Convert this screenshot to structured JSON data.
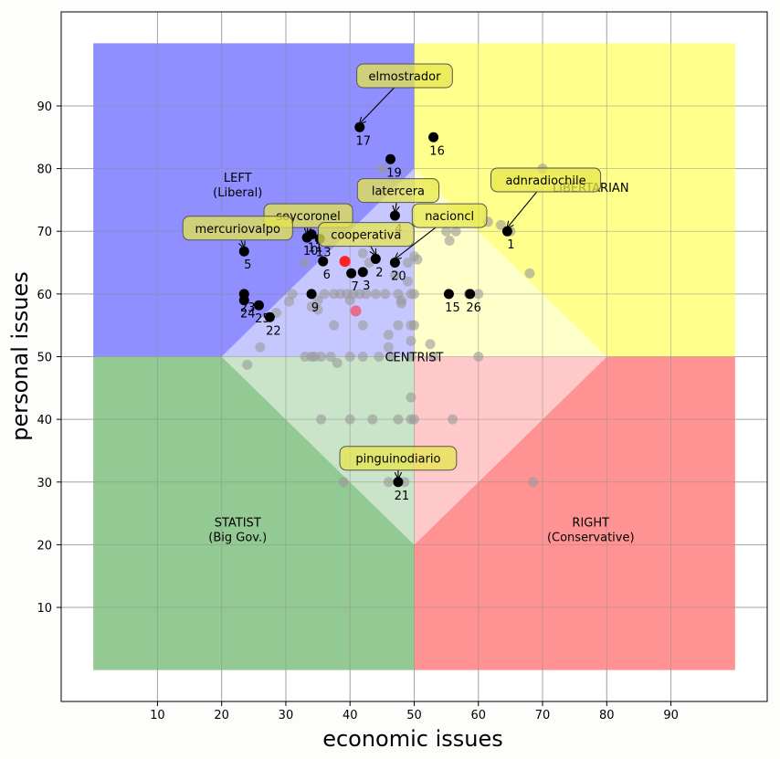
{
  "chart_data": {
    "type": "scatter",
    "xlabel": "economic issues",
    "ylabel": "personal issues",
    "xlim": [
      -5,
      105
    ],
    "ylim": [
      -5,
      105
    ],
    "xticks": [
      10,
      20,
      30,
      40,
      50,
      60,
      70,
      80,
      90
    ],
    "yticks": [
      10,
      20,
      30,
      40,
      50,
      60,
      70,
      80,
      90
    ],
    "grid": true,
    "colors": {
      "left": "#7b7bff",
      "libertarian": "#ffff77",
      "statist": "#80bf80",
      "right": "#ff8080",
      "center_left": "#bdbdff",
      "center_libertarian": "#ffffc0",
      "center_statist": "#c0dfc0",
      "center_right": "#ffc0c0",
      "background_point": "#999999",
      "labeled_point": "#000000",
      "red_point": "#ff2020",
      "pink_point": "#ee5577",
      "annotation_box": "#e6e64d"
    },
    "regions": [
      {
        "name": "left",
        "label_lines": [
          "LEFT",
          "(Liberal)"
        ],
        "x": 22.5,
        "y": 77.5
      },
      {
        "name": "libertarian",
        "label_lines": [
          "LIBERTARIAN"
        ],
        "x": 77.5,
        "y": 77.0
      },
      {
        "name": "statist",
        "label_lines": [
          "STATIST",
          "(Big Gov.)"
        ],
        "x": 22.5,
        "y": 22.5
      },
      {
        "name": "right",
        "label_lines": [
          "RIGHT",
          "(Conservative)"
        ],
        "x": 77.5,
        "y": 22.5
      },
      {
        "name": "centrist",
        "label_lines": [
          "CENTRIST"
        ],
        "x": 50,
        "y": 50
      }
    ],
    "background_points": [
      [
        24,
        48.7
      ],
      [
        26,
        51.5
      ],
      [
        28.5,
        57
      ],
      [
        30.5,
        58.8
      ],
      [
        31,
        60
      ],
      [
        33,
        65
      ],
      [
        33,
        50
      ],
      [
        34,
        50
      ],
      [
        34,
        58
      ],
      [
        34.5,
        50
      ],
      [
        35,
        57.5
      ],
      [
        35,
        59
      ],
      [
        35.5,
        40
      ],
      [
        35.5,
        50
      ],
      [
        36,
        60
      ],
      [
        37,
        50
      ],
      [
        37.5,
        55
      ],
      [
        37.5,
        60
      ],
      [
        38,
        49
      ],
      [
        38.5,
        60
      ],
      [
        39,
        30
      ],
      [
        39.5,
        60
      ],
      [
        40,
        50
      ],
      [
        40,
        59
      ],
      [
        40,
        40
      ],
      [
        40.5,
        60
      ],
      [
        41.5,
        60
      ],
      [
        42,
        55
      ],
      [
        42,
        50
      ],
      [
        42,
        66.5
      ],
      [
        42.5,
        60
      ],
      [
        43,
        65
      ],
      [
        43.5,
        40
      ],
      [
        44,
        60
      ],
      [
        44.5,
        50
      ],
      [
        45,
        80
      ],
      [
        45.5,
        60
      ],
      [
        46,
        53.5
      ],
      [
        46,
        51.5
      ],
      [
        46,
        30
      ],
      [
        46.5,
        50
      ],
      [
        47,
        63
      ],
      [
        47.5,
        60
      ],
      [
        47.5,
        55
      ],
      [
        47.5,
        40
      ],
      [
        47.5,
        30
      ],
      [
        48,
        59
      ],
      [
        48,
        58.5
      ],
      [
        48.5,
        30
      ],
      [
        49,
        65
      ],
      [
        49,
        62
      ],
      [
        49.5,
        60
      ],
      [
        49.5,
        55
      ],
      [
        49.5,
        52.5
      ],
      [
        49.5,
        50
      ],
      [
        49.5,
        43.5
      ],
      [
        49.5,
        40
      ],
      [
        50,
        66
      ],
      [
        50,
        60
      ],
      [
        50,
        55
      ],
      [
        50,
        40
      ],
      [
        50.5,
        65.5
      ],
      [
        52.5,
        52
      ],
      [
        53,
        50
      ],
      [
        55,
        70
      ],
      [
        55.5,
        68.5
      ],
      [
        56,
        40
      ],
      [
        56.5,
        70
      ],
      [
        58.5,
        60
      ],
      [
        60,
        60
      ],
      [
        60,
        50
      ],
      [
        61.5,
        71.5
      ],
      [
        63.5,
        71
      ],
      [
        65,
        70
      ],
      [
        68,
        63.3
      ],
      [
        68.5,
        30
      ],
      [
        70,
        80
      ]
    ],
    "red_points": [
      {
        "x": 39.2,
        "y": 65.2,
        "color": "red"
      },
      {
        "x": 40.9,
        "y": 57.3,
        "color": "pink"
      }
    ],
    "labeled_points": [
      {
        "id": "1",
        "x": 64.5,
        "y": 70
      },
      {
        "id": "2",
        "x": 44,
        "y": 65.6
      },
      {
        "id": "3",
        "x": 42,
        "y": 63.5
      },
      {
        "id": "4",
        "x": 47,
        "y": 72.5
      },
      {
        "id": "5",
        "x": 23.5,
        "y": 66.8
      },
      {
        "id": "6",
        "x": 35.8,
        "y": 65.2
      },
      {
        "id": "7",
        "x": 40.2,
        "y": 63.3
      },
      {
        "id": "9",
        "x": 34,
        "y": 60
      },
      {
        "id": "10",
        "x": 33.3,
        "y": 69
      },
      {
        "id": "11",
        "x": 34,
        "y": 69.5
      },
      {
        "id": "13",
        "x": 35.3,
        "y": 68.8
      },
      {
        "id": "15",
        "x": 55.4,
        "y": 60
      },
      {
        "id": "16",
        "x": 53,
        "y": 85
      },
      {
        "id": "17",
        "x": 41.5,
        "y": 86.6
      },
      {
        "id": "19",
        "x": 46.3,
        "y": 81.5
      },
      {
        "id": "20",
        "x": 47,
        "y": 65
      },
      {
        "id": "21",
        "x": 47.5,
        "y": 30
      },
      {
        "id": "22",
        "x": 27.5,
        "y": 56.3
      },
      {
        "id": "23",
        "x": 23.5,
        "y": 60
      },
      {
        "id": "24",
        "x": 23.5,
        "y": 59
      },
      {
        "id": "25",
        "x": 25.8,
        "y": 58.2
      },
      {
        "id": "26",
        "x": 58.7,
        "y": 60
      }
    ],
    "annotations": [
      {
        "text": "elmostrador",
        "x": 41.5,
        "y": 86.6,
        "tx": 48.5,
        "ty": 94.8
      },
      {
        "text": "adnradiochile",
        "x": 64.5,
        "y": 70,
        "tx": 70.5,
        "ty": 78.2
      },
      {
        "text": "latercera",
        "x": 47,
        "y": 72.5,
        "tx": 47.5,
        "ty": 76.5
      },
      {
        "text": "nacioncl",
        "x": 47,
        "y": 65,
        "tx": 55.5,
        "ty": 72.5
      },
      {
        "text": "soycoronel",
        "x": 33.3,
        "y": 69,
        "tx": 33.5,
        "ty": 72.5
      },
      {
        "text": "cooperativa",
        "x": 44,
        "y": 65.6,
        "tx": 42.5,
        "ty": 69.5
      },
      {
        "text": "mercuriovalpo",
        "x": 23.5,
        "y": 66.8,
        "tx": 22.5,
        "ty": 70.5
      },
      {
        "text": "pinguinodiario",
        "x": 47.5,
        "y": 30,
        "tx": 47.5,
        "ty": 33.8
      }
    ]
  }
}
